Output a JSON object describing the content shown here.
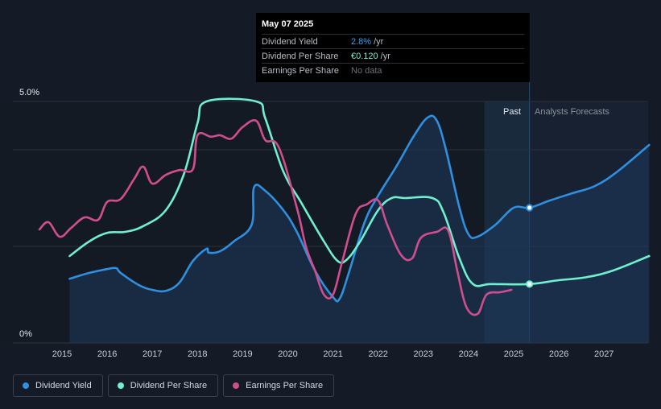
{
  "tooltip": {
    "date": "May 07 2025",
    "rows": [
      {
        "name": "Dividend Yield",
        "value": "2.8%",
        "unit": "/yr"
      },
      {
        "name": "Dividend Per Share",
        "value": "€0.120",
        "unit": "/yr"
      },
      {
        "name": "Earnings Per Share",
        "value": "No data",
        "unit": ""
      }
    ]
  },
  "regions": {
    "past": "Past",
    "forecast": "Analysts Forecasts"
  },
  "legend": [
    {
      "label": "Dividend Yield",
      "color": "#2f8fe0"
    },
    {
      "label": "Dividend Per Share",
      "color": "#6ff0d0"
    },
    {
      "label": "Earnings Per Share",
      "color": "#d04e8e"
    }
  ],
  "chart_data": {
    "type": "line",
    "xlim": [
      2014.5,
      2028.0
    ],
    "ylim": [
      0,
      5.0
    ],
    "y_tick_labels": [
      {
        "value": 5.0,
        "label": "5.0%"
      },
      {
        "value": 0,
        "label": "0%"
      }
    ],
    "x_ticks": [
      2015,
      2016,
      2017,
      2018,
      2019,
      2020,
      2021,
      2022,
      2023,
      2024,
      2025,
      2026,
      2027
    ],
    "gridlines": [
      0,
      2.0,
      4.0,
      5.0
    ],
    "past_forecast_boundary": 2025.35,
    "forecast_band_start": 2024.35,
    "marker_x": 2025.35,
    "series": [
      {
        "name": "Dividend Yield",
        "color": "#2f8fe0",
        "unit": "%",
        "filled": true,
        "points": [
          [
            2015.17,
            1.33
          ],
          [
            2015.6,
            1.45
          ],
          [
            2016.0,
            1.53
          ],
          [
            2016.2,
            1.55
          ],
          [
            2016.3,
            1.45
          ],
          [
            2016.7,
            1.2
          ],
          [
            2017.0,
            1.1
          ],
          [
            2017.3,
            1.08
          ],
          [
            2017.6,
            1.25
          ],
          [
            2017.9,
            1.7
          ],
          [
            2018.2,
            1.95
          ],
          [
            2018.25,
            1.87
          ],
          [
            2018.5,
            1.9
          ],
          [
            2018.8,
            2.1
          ],
          [
            2019.2,
            2.45
          ],
          [
            2019.25,
            3.22
          ],
          [
            2019.5,
            3.15
          ],
          [
            2019.9,
            2.75
          ],
          [
            2020.2,
            2.3
          ],
          [
            2020.6,
            1.5
          ],
          [
            2021.0,
            0.95
          ],
          [
            2021.15,
            0.92
          ],
          [
            2021.35,
            1.45
          ],
          [
            2021.7,
            2.5
          ],
          [
            2022.0,
            3.05
          ],
          [
            2022.4,
            3.65
          ],
          [
            2022.8,
            4.3
          ],
          [
            2023.1,
            4.67
          ],
          [
            2023.3,
            4.6
          ],
          [
            2023.5,
            4.0
          ],
          [
            2023.8,
            2.8
          ],
          [
            2024.0,
            2.25
          ],
          [
            2024.2,
            2.2
          ],
          [
            2024.6,
            2.45
          ],
          [
            2025.0,
            2.8
          ],
          [
            2025.35,
            2.8
          ],
          [
            2025.8,
            2.95
          ],
          [
            2026.3,
            3.1
          ],
          [
            2026.8,
            3.25
          ],
          [
            2027.3,
            3.55
          ],
          [
            2028.0,
            4.1
          ]
        ]
      },
      {
        "name": "Dividend Per Share",
        "color": "#6ff0d0",
        "unit": "%",
        "filled": false,
        "points": [
          [
            2015.17,
            1.8
          ],
          [
            2015.6,
            2.1
          ],
          [
            2016.0,
            2.28
          ],
          [
            2016.4,
            2.3
          ],
          [
            2016.8,
            2.42
          ],
          [
            2017.3,
            2.75
          ],
          [
            2017.7,
            3.5
          ],
          [
            2018.0,
            4.55
          ],
          [
            2018.2,
            5.0
          ],
          [
            2019.3,
            5.0
          ],
          [
            2019.5,
            4.65
          ],
          [
            2019.9,
            3.55
          ],
          [
            2020.3,
            2.9
          ],
          [
            2020.8,
            2.1
          ],
          [
            2021.1,
            1.7
          ],
          [
            2021.3,
            1.72
          ],
          [
            2021.6,
            2.1
          ],
          [
            2022.0,
            2.75
          ],
          [
            2022.3,
            3.0
          ],
          [
            2022.6,
            3.0
          ],
          [
            2023.2,
            3.0
          ],
          [
            2023.45,
            2.7
          ],
          [
            2023.8,
            1.75
          ],
          [
            2024.1,
            1.22
          ],
          [
            2024.5,
            1.22
          ],
          [
            2025.35,
            1.22
          ],
          [
            2026.0,
            1.3
          ],
          [
            2026.6,
            1.36
          ],
          [
            2027.2,
            1.5
          ],
          [
            2028.0,
            1.8
          ]
        ]
      },
      {
        "name": "Earnings Per Share",
        "color": "#d04e8e",
        "unit": "%",
        "filled": false,
        "points": [
          [
            2014.5,
            2.35
          ],
          [
            2014.7,
            2.5
          ],
          [
            2014.95,
            2.2
          ],
          [
            2015.2,
            2.38
          ],
          [
            2015.5,
            2.6
          ],
          [
            2015.8,
            2.55
          ],
          [
            2016.0,
            2.92
          ],
          [
            2016.3,
            2.98
          ],
          [
            2016.6,
            3.4
          ],
          [
            2016.8,
            3.65
          ],
          [
            2017.0,
            3.3
          ],
          [
            2017.3,
            3.48
          ],
          [
            2017.6,
            3.58
          ],
          [
            2017.9,
            3.6
          ],
          [
            2018.0,
            4.3
          ],
          [
            2018.3,
            4.27
          ],
          [
            2018.5,
            4.3
          ],
          [
            2018.75,
            4.23
          ],
          [
            2019.0,
            4.47
          ],
          [
            2019.3,
            4.6
          ],
          [
            2019.5,
            4.2
          ],
          [
            2019.8,
            4.05
          ],
          [
            2020.2,
            2.8
          ],
          [
            2020.4,
            2.0
          ],
          [
            2020.6,
            1.5
          ],
          [
            2020.8,
            1.0
          ],
          [
            2021.0,
            1.0
          ],
          [
            2021.2,
            1.67
          ],
          [
            2021.5,
            2.67
          ],
          [
            2021.75,
            2.87
          ],
          [
            2022.0,
            2.95
          ],
          [
            2022.2,
            2.45
          ],
          [
            2022.5,
            1.83
          ],
          [
            2022.75,
            1.75
          ],
          [
            2022.95,
            2.18
          ],
          [
            2023.3,
            2.3
          ],
          [
            2023.55,
            2.33
          ],
          [
            2023.75,
            1.5
          ],
          [
            2023.95,
            0.75
          ],
          [
            2024.2,
            0.6
          ],
          [
            2024.4,
            1.0
          ],
          [
            2024.7,
            1.05
          ],
          [
            2024.95,
            1.1
          ]
        ]
      }
    ]
  }
}
